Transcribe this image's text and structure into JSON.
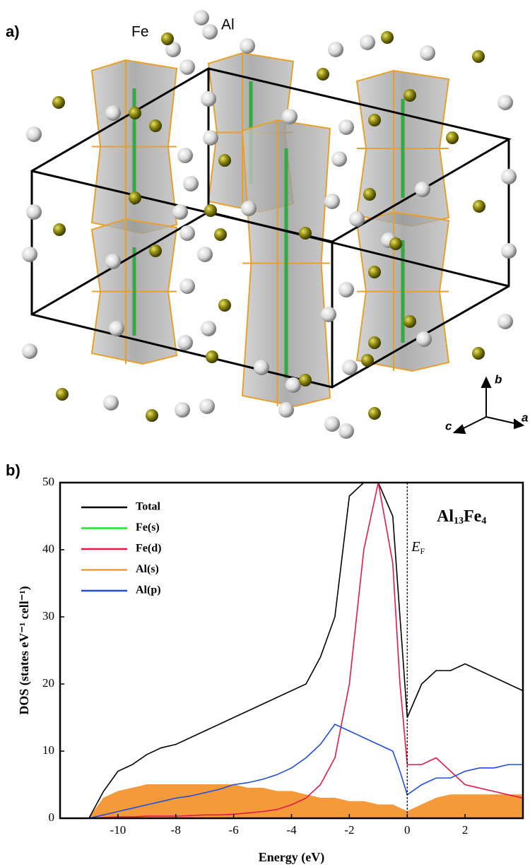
{
  "panel_a": {
    "label": "a)",
    "element_labels": [
      "Fe",
      "Al"
    ],
    "axis_labels": [
      "b",
      "c",
      "a"
    ]
  },
  "chart_data": {
    "type": "line",
    "panel_label": "b)",
    "xlabel": "Energy (eV)",
    "ylabel": "DOS (states eV⁻¹ cell⁻¹)",
    "compound_label": [
      "Al",
      "13",
      "Fe",
      "4"
    ],
    "fermi_label": [
      "E",
      "F"
    ],
    "fermi_energy": 0,
    "xlim": [
      -12,
      4
    ],
    "ylim": [
      0,
      50
    ],
    "xticks": [
      -10,
      -8,
      -6,
      -4,
      -2,
      0,
      2
    ],
    "yticks": [
      0,
      10,
      20,
      30,
      40,
      50
    ],
    "x": [
      -11,
      -10.5,
      -10,
      -9.5,
      -9,
      -8.5,
      -8,
      -7.5,
      -7,
      -6.5,
      -6,
      -5.5,
      -5,
      -4.5,
      -4,
      -3.5,
      -3,
      -2.5,
      -2,
      -1.5,
      -1,
      -0.5,
      -0.25,
      0,
      0.5,
      1,
      1.5,
      2,
      2.5,
      3,
      3.5,
      4
    ],
    "series": [
      {
        "name": "Total",
        "color": "#000000",
        "fill": false,
        "values": [
          0,
          4,
          7,
          8,
          9.5,
          10.5,
          11,
          12,
          13,
          14,
          15,
          16,
          17,
          18,
          19,
          20,
          24,
          30,
          48,
          50,
          50,
          45,
          30,
          15,
          20,
          22,
          22,
          23,
          22,
          21,
          20,
          19
        ]
      },
      {
        "name": "Fe(s)",
        "color": "#22e622",
        "fill": true,
        "values": [
          0,
          0.3,
          0.5,
          0.5,
          0.5,
          0.5,
          0.6,
          0.6,
          0.6,
          0.6,
          0.6,
          0.6,
          0.6,
          0.6,
          0.6,
          0.6,
          0.6,
          0.6,
          0.6,
          0.6,
          0.5,
          0.5,
          0.5,
          0.4,
          0.4,
          0.5,
          0.5,
          0.5,
          0.5,
          0.5,
          0.5,
          0.5
        ]
      },
      {
        "name": "Fe(d)",
        "color": "#e8174a",
        "fill": false,
        "values": [
          0,
          0.1,
          0.2,
          0.2,
          0.3,
          0.3,
          0.3,
          0.4,
          0.5,
          0.5,
          0.6,
          0.8,
          1,
          1.3,
          2,
          3,
          5,
          9,
          20,
          40,
          50,
          38,
          20,
          8,
          8,
          9,
          7,
          5,
          4.5,
          4,
          3.5,
          3
        ]
      },
      {
        "name": "Al(s)",
        "color": "#f59a3a",
        "fill": true,
        "values": [
          0,
          3,
          4,
          4.5,
          5,
          5,
          5,
          5,
          5,
          5,
          5,
          4.5,
          4.5,
          4,
          4,
          3.5,
          3,
          3,
          2.5,
          2.5,
          2,
          2,
          1.5,
          1,
          2,
          3,
          3.5,
          3.5,
          3.5,
          3.5,
          3.5,
          3.5
        ]
      },
      {
        "name": "Al(p)",
        "color": "#1f4fe0",
        "fill": false,
        "values": [
          0,
          0.5,
          1,
          1.5,
          2,
          2.5,
          3,
          3.3,
          3.8,
          4.3,
          5,
          5.3,
          5.8,
          6.5,
          7.5,
          9,
          11,
          14,
          13,
          12,
          11,
          10,
          7,
          3.5,
          5,
          6,
          6,
          7,
          7.5,
          7.5,
          8,
          8
        ]
      }
    ]
  }
}
